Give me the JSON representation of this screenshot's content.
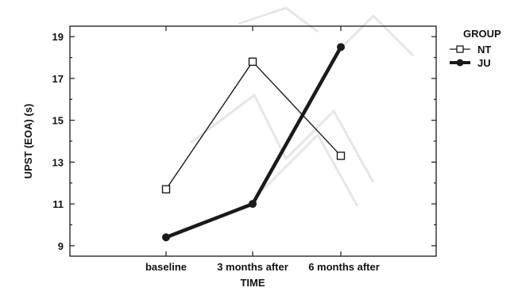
{
  "chart_data": {
    "type": "line",
    "title": "",
    "xlabel": "TIME",
    "ylabel": "UPST (EOA) (s)",
    "categories": [
      "baseline",
      "3 months after",
      "6 months after"
    ],
    "ylim": [
      8.5,
      19.5
    ],
    "yticks": [
      "9",
      "11",
      "13",
      "15",
      "17",
      "19"
    ],
    "legend": {
      "title": "GROUP",
      "position": "right-outside-top"
    },
    "series": [
      {
        "name": "NT",
        "values": [
          11.7,
          17.8,
          13.3
        ],
        "color": "#1a1a1a",
        "marker": "open-square"
      },
      {
        "name": "JU",
        "values": [
          9.4,
          11.0,
          18.5
        ],
        "color": "#1a1a1a",
        "marker": "filled-circle"
      }
    ],
    "grid": false
  }
}
